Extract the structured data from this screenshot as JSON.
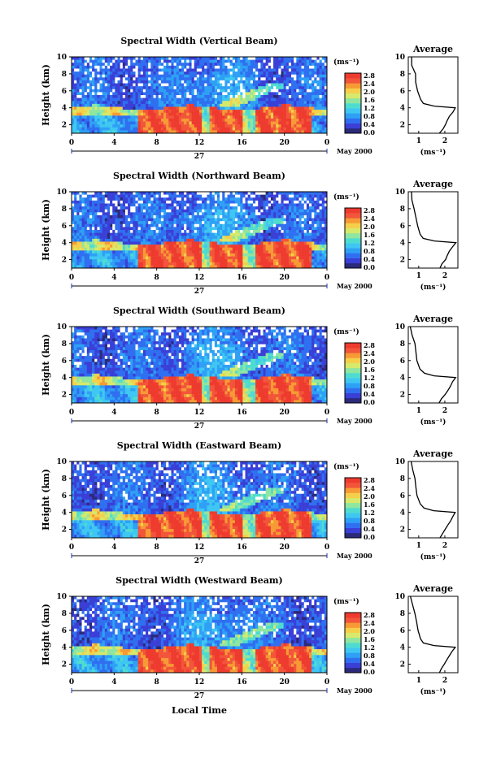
{
  "colors": {
    "background": "#ffffff",
    "colorbar": [
      "#2b2a7a",
      "#3a3fd6",
      "#2f6ff0",
      "#2ea0f5",
      "#3fc7f2",
      "#4fdcd0",
      "#8fe6a0",
      "#d6e96b",
      "#f5cf4a",
      "#f79a35",
      "#f2553a",
      "#ee3b2f"
    ]
  },
  "xlabel_bottom": "Local Time",
  "panels": [
    {
      "title": "Spectral Width (Vertical Beam)",
      "avg_xticks": [
        "1",
        "2"
      ]
    },
    {
      "title": "Spectral Width (Northward Beam)",
      "avg_xticks": [
        "1",
        "2"
      ]
    },
    {
      "title": "Spectral Width (Southward Beam)",
      "avg_xticks": [
        "1",
        "2"
      ]
    },
    {
      "title": "Spectral Width (Eastward Beam)",
      "avg_xticks": [
        "1",
        "2"
      ]
    },
    {
      "title": "Spectral Width (Westward Beam)",
      "avg_xticks": [
        "1",
        "2"
      ]
    }
  ],
  "chart_data": {
    "type": "heatmap",
    "ylabel": "Height (km)",
    "yticks": [
      "10",
      "8",
      "6",
      "4",
      "2"
    ],
    "ylim": [
      1,
      10
    ],
    "xticks": [
      "0",
      "4",
      "8",
      "12",
      "16",
      "20",
      "0"
    ],
    "xlim": [
      0,
      24
    ],
    "date_label": "May 2000",
    "day_label": "27",
    "colorbar_unit": "(ms⁻¹)",
    "colorbar_ticks": [
      "2.8",
      "2.4",
      "2.0",
      "1.6",
      "1.2",
      "0.8",
      "0.4",
      "0.0"
    ],
    "colorbar_range": [
      0,
      3.0
    ],
    "average_title": "Average",
    "average_xlabel": "(ms⁻¹)",
    "average_profile": {
      "height_km": [
        10,
        9,
        8,
        7,
        6,
        5,
        4.5,
        4.2,
        4.0,
        3.5,
        3.0,
        2.5,
        2.0,
        1.5,
        1.0
      ],
      "width_ms": [
        0.7,
        0.75,
        0.85,
        0.9,
        0.95,
        1.05,
        1.2,
        1.6,
        2.4,
        2.3,
        2.2,
        2.1,
        2.0,
        1.9,
        1.8
      ]
    },
    "average_xlim": [
      0.6,
      2.5
    ]
  }
}
